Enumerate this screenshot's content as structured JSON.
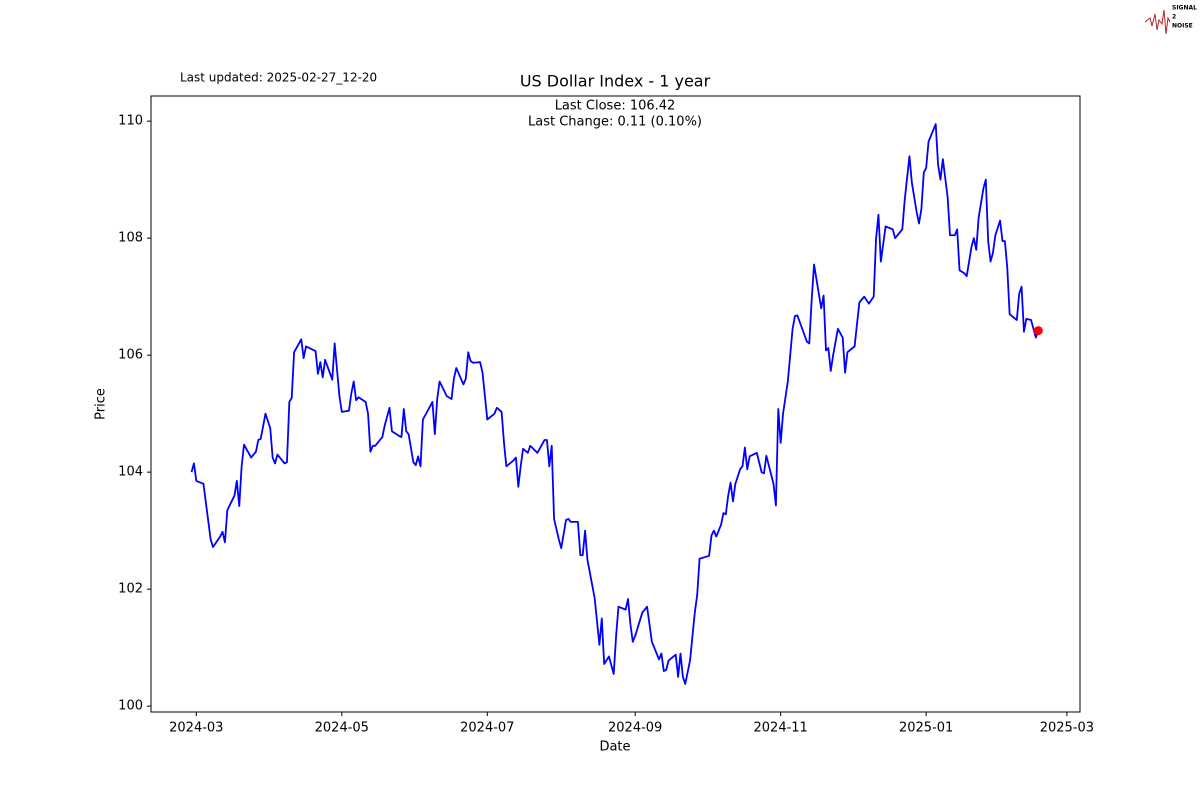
{
  "chart_data": {
    "type": "line",
    "title": "US Dollar Index - 1 year",
    "last_updated": "Last updated: 2025-02-27_12-20",
    "annotations": [
      "Last Close: 106.42",
      "Last Change: 0.11 (0.10%)"
    ],
    "logo_text": [
      "SIGNAL",
      "2",
      "NOISE"
    ],
    "xlabel": "Date",
    "ylabel": "Price",
    "xlim": [
      19764,
      20153.5
    ],
    "ylim": [
      99.9,
      110.43
    ],
    "xticks": [
      {
        "value": 19783,
        "label": "2024-03"
      },
      {
        "value": 19844,
        "label": "2024-05"
      },
      {
        "value": 19905,
        "label": "2024-07"
      },
      {
        "value": 19967,
        "label": "2024-09"
      },
      {
        "value": 20028,
        "label": "2024-11"
      },
      {
        "value": 20089,
        "label": "2025-01"
      },
      {
        "value": 20148,
        "label": "2025-03"
      }
    ],
    "yticks": [
      100,
      102,
      104,
      106,
      108,
      110
    ],
    "grid": false,
    "highlight_last": true,
    "highlight_color": "#ff0000",
    "x": [
      19781,
      19782,
      19783,
      19786,
      19789,
      19790,
      19793,
      19794,
      19795,
      19796,
      19799,
      19800,
      19801,
      19802,
      19803,
      19806,
      19808,
      19809,
      19810,
      19812,
      19814,
      19815,
      19816,
      19817,
      19820,
      19821,
      19822,
      19823,
      19824,
      19827,
      19828,
      19829,
      19833,
      19834,
      19835,
      19836,
      19837,
      19840,
      19841,
      19843,
      19844,
      19847,
      19848,
      19849,
      19850,
      19851,
      19854,
      19855,
      19856,
      19857,
      19858,
      19861,
      19862,
      19864,
      19865,
      19868,
      19869,
      19870,
      19871,
      19872,
      19874,
      19875,
      19876,
      19877,
      19878,
      19882,
      19883,
      19884,
      19885,
      19888,
      19890,
      19891,
      19892,
      19895,
      19896,
      19897,
      19898,
      19899,
      19902,
      19903,
      19905,
      19908,
      19909,
      19911,
      19912,
      19913,
      19916,
      19917,
      19918,
      19919,
      19920,
      19922,
      19923,
      19926,
      19929,
      19930,
      19931,
      19932,
      19933,
      19935,
      19936,
      19938,
      19939,
      19940,
      19943,
      19944,
      19945,
      19946,
      19947,
      19950,
      19952,
      19953,
      19954,
      19956,
      19958,
      19959,
      19960,
      19963,
      19964,
      19965,
      19966,
      19967,
      19970,
      19972,
      19974,
      19977,
      19978,
      19979,
      19980,
      19981,
      19984,
      19985,
      19986,
      19987,
      19988,
      19990,
      19992,
      19993,
      19994,
      19998,
      19999,
      20000,
      20001,
      20003,
      20004,
      20005,
      20006,
      20007,
      20008,
      20009,
      20011,
      20012,
      20013,
      20014,
      20015,
      20018,
      20020,
      20021,
      20022,
      20025,
      20026,
      20027,
      20028,
      20029,
      20031,
      20033,
      20034,
      20035,
      20039,
      20040,
      20041,
      20042,
      20045,
      20046,
      20047,
      20048,
      20049,
      20050,
      20052,
      20054,
      20055,
      20056,
      20059,
      20060,
      20061,
      20063,
      20065,
      20067,
      20068,
      20069,
      20070,
      20072,
      20075,
      20076,
      20079,
      20080,
      20082,
      20083,
      20085,
      20086,
      20087,
      20088,
      20089,
      20090,
      20092,
      20093,
      20094,
      20095,
      20096,
      20098,
      20099,
      20101,
      20102,
      20103,
      20105,
      20106,
      20108,
      20109,
      20110,
      20111,
      20113,
      20114,
      20115,
      20116,
      20117,
      20118,
      20120,
      20121,
      20122,
      20123,
      20124,
      20127,
      20128,
      20129,
      20130,
      20131,
      20133,
      20135,
      20136
    ],
    "series": [
      {
        "color": "#0000ff",
        "values": [
          104.0,
          104.15,
          103.85,
          103.8,
          102.85,
          102.72,
          102.9,
          102.98,
          102.8,
          103.35,
          103.6,
          103.85,
          103.42,
          104.1,
          104.47,
          104.25,
          104.35,
          104.55,
          104.57,
          105.0,
          104.75,
          104.25,
          104.15,
          104.3,
          104.15,
          104.17,
          105.2,
          105.27,
          106.05,
          106.27,
          105.95,
          106.15,
          106.07,
          105.68,
          105.88,
          105.62,
          105.92,
          105.58,
          106.2,
          105.3,
          105.03,
          105.05,
          105.35,
          105.55,
          105.23,
          105.28,
          105.2,
          105.0,
          104.35,
          104.45,
          104.45,
          104.6,
          104.8,
          105.1,
          104.7,
          104.62,
          104.6,
          105.08,
          104.7,
          104.65,
          104.17,
          104.12,
          104.27,
          104.1,
          104.9,
          105.2,
          104.65,
          105.25,
          105.55,
          105.3,
          105.25,
          105.6,
          105.78,
          105.5,
          105.6,
          106.05,
          105.9,
          105.87,
          105.88,
          105.7,
          104.9,
          105.0,
          105.1,
          105.03,
          104.5,
          104.1,
          104.2,
          104.25,
          103.75,
          104.1,
          104.4,
          104.33,
          104.45,
          104.33,
          104.55,
          104.55,
          104.1,
          104.45,
          103.2,
          102.85,
          102.7,
          103.18,
          103.2,
          103.15,
          103.15,
          102.58,
          102.58,
          103.0,
          102.5,
          101.85,
          101.05,
          101.5,
          100.72,
          100.85,
          100.55,
          101.2,
          101.7,
          101.65,
          101.83,
          101.4,
          101.1,
          101.2,
          101.6,
          101.7,
          101.1,
          100.8,
          100.9,
          100.6,
          100.62,
          100.78,
          100.88,
          100.5,
          100.9,
          100.5,
          100.38,
          100.78,
          101.6,
          101.9,
          102.52,
          102.57,
          102.92,
          103.0,
          102.9,
          103.1,
          103.3,
          103.28,
          103.6,
          103.82,
          103.5,
          103.8,
          104.05,
          104.1,
          104.42,
          104.05,
          104.27,
          104.33,
          104.0,
          103.98,
          104.28,
          103.8,
          103.43,
          105.08,
          104.5,
          105.0,
          105.55,
          106.45,
          106.67,
          106.68,
          106.23,
          106.2,
          106.95,
          107.55,
          106.8,
          107.02,
          106.08,
          106.12,
          105.73,
          106.0,
          106.45,
          106.3,
          105.7,
          106.05,
          106.15,
          106.53,
          106.9,
          107.0,
          106.88,
          107.0,
          108.0,
          108.4,
          107.6,
          108.2,
          108.15,
          108.0,
          108.15,
          108.65,
          109.4,
          108.95,
          108.45,
          108.25,
          108.5,
          109.12,
          109.2,
          109.65,
          109.85,
          109.95,
          109.25,
          109.0,
          109.35,
          108.7,
          108.05,
          108.05,
          108.15,
          107.45,
          107.4,
          107.35,
          107.85,
          108.0,
          107.8,
          108.35,
          108.85,
          109.0,
          107.95,
          107.6,
          107.75,
          108.05,
          108.3,
          107.95,
          107.95,
          107.5,
          106.7,
          106.6,
          107.05,
          107.17,
          106.4,
          106.62,
          106.6,
          106.3,
          106.42
        ]
      }
    ]
  }
}
